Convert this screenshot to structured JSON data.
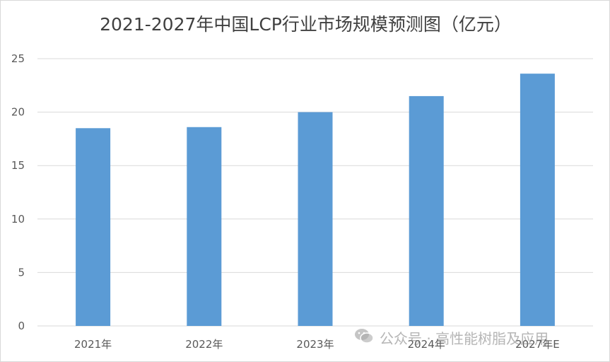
{
  "chart_data": {
    "type": "bar",
    "title": "2021-2027年中国LCP行业市场规模预测图（亿元）",
    "categories": [
      "2021年",
      "2022年",
      "2023年",
      "2024年",
      "2027年E"
    ],
    "values": [
      18.5,
      18.6,
      20.0,
      21.5,
      23.6
    ],
    "ylim": [
      0,
      25
    ],
    "yticks": [
      0,
      5,
      10,
      15,
      20,
      25
    ],
    "grid": true,
    "bar_color": "#5b9bd5",
    "gridline_color": "#d9d9d9"
  },
  "watermark": {
    "text": "公众号 · 高性能树脂及应用",
    "icon": "wechat-icon"
  }
}
